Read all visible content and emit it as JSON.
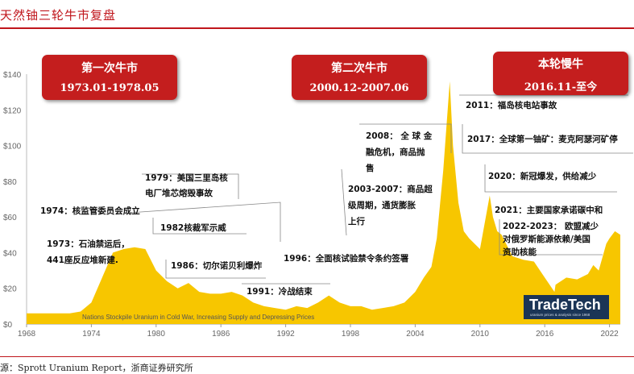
{
  "page": {
    "title": "天然铀三轮牛市复盘",
    "source": "源：Sprott Uranium Report，浙商证券研究所"
  },
  "phases": [
    {
      "name": "第一次牛市",
      "dates": "1973.01-1978.05"
    },
    {
      "name": "第二次牛市",
      "dates": "2000.12-2007.06"
    },
    {
      "name": "本轮慢牛",
      "dates": "2016.11-至今"
    }
  ],
  "logo": {
    "text": "TradeTech",
    "sub": "uranium prices & analysis since 1968"
  },
  "colors": {
    "accent": "#c0161c",
    "area": "#f7c600",
    "box": "#c41e1e"
  },
  "chart_data": {
    "type": "area",
    "title": "",
    "xlabel": "",
    "ylabel": "",
    "xlim": [
      1968,
      2023
    ],
    "ylim": [
      0,
      140
    ],
    "grid": false,
    "legend": "none",
    "y_ticks": [
      "$0",
      "$20",
      "$40",
      "$60",
      "$80",
      "$100",
      "$120",
      "$140"
    ],
    "x_ticks": [
      "1968",
      "1974",
      "1980",
      "1986",
      "1992",
      "1998",
      "2004",
      "2010",
      "2016",
      "2022"
    ],
    "inner_annotation": "Nations Stockpile Uranium in Cold War, Increasing Supply and Depressing Prices",
    "series": [
      {
        "x": [
          1968,
          1970,
          1972,
          1973,
          1974,
          1975,
          1976,
          1977,
          1978,
          1979,
          1980,
          1981,
          1982,
          1983,
          1984,
          1985,
          1986,
          1987,
          1988,
          1989,
          1990,
          1991,
          1992,
          1993,
          1994,
          1995,
          1996,
          1997,
          1998,
          1999,
          2000,
          2001,
          2002,
          2003,
          2004,
          2004.8,
          2005.5,
          2006,
          2006.6,
          2007.2,
          2007.5,
          2008,
          2008.5,
          2009,
          2010,
          2010.9,
          2011.2,
          2011.6,
          2012,
          2013,
          2014,
          2015,
          2016,
          2016.9,
          2017,
          2018,
          2019,
          2020,
          2020.5,
          2021,
          2021.7,
          2022,
          2022.5,
          2023
        ],
        "values": [
          6,
          6,
          6,
          7,
          12,
          26,
          40,
          42,
          43,
          42,
          30,
          24,
          20,
          23,
          18,
          17,
          17,
          18,
          16,
          12,
          10,
          9,
          8,
          10,
          9,
          12,
          16,
          12,
          10,
          10,
          8,
          9,
          10,
          12,
          18,
          26,
          32,
          48,
          86,
          136,
          100,
          68,
          52,
          48,
          42,
          72,
          60,
          52,
          50,
          38,
          36,
          35,
          26,
          18,
          22,
          26,
          25,
          28,
          33,
          30,
          45,
          48,
          52,
          50
        ]
      }
    ],
    "annotations": [
      {
        "label": "1973：石油禁运后，",
        "label2": "441座反应堆新建."
      },
      {
        "label": "1974：核监管委员会成立"
      },
      {
        "label": "1979：美国三里岛核",
        "label2": "电厂堆芯熔毁事故"
      },
      {
        "label": "1982核裁军示威"
      },
      {
        "label": "1986：切尔诺贝利爆炸"
      },
      {
        "label": "1991：冷战结束"
      },
      {
        "label": "1996：全面核试验禁令条约签署"
      },
      {
        "label": "2003-2007：商品超",
        "label2": "级周期，通货膨胀",
        "label3": "上行"
      },
      {
        "label": "2008：  全 球 金",
        "label2": "融危机，商品抛",
        "label3": "售"
      },
      {
        "label": "2011：福岛核电站事故"
      },
      {
        "label": "2017：全球第一铀矿：麦克阿瑟河矿停"
      },
      {
        "label": "2020：新冠爆发，供给减少"
      },
      {
        "label": "2021：主要国家承诺碳中和"
      },
      {
        "label": "2022-2023：  欧盟减少",
        "label2": "对俄罗斯能源依赖/美国",
        "label3": "资助核能"
      }
    ]
  }
}
